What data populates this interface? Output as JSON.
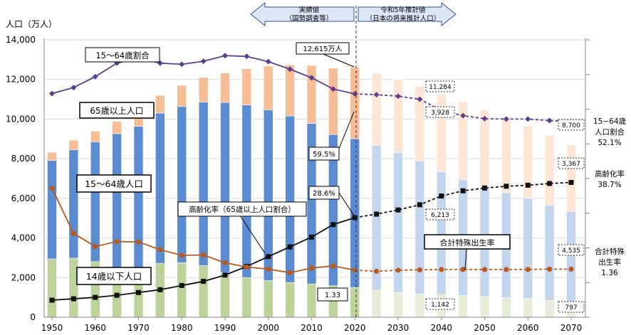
{
  "header": {
    "actual_label_1": "実績値",
    "actual_label_2": "（国勢調査等）",
    "proj_label_1": "令和5年推計値",
    "proj_label_2": "（日本の将来推計人口）"
  },
  "axes": {
    "left_title": "人口（万人）",
    "right_ticks": [
      "",
      "",
      "",
      "",
      "",
      "",
      "",
      "",
      ""
    ]
  },
  "labels": {
    "ratio_1564_box": "15～64歳割合",
    "pop_65_box": "65歳以上人口",
    "pop_1564_box": "15～64歳人口",
    "pop_014_box": "14歳以下人口",
    "aging_box": "高齢化率（65歳以上人口割合）",
    "tfr_box": "合計特殊出生率",
    "total_2020": "12,615万人",
    "ratio_2020": "59.5%",
    "aging_2020": "28.6%",
    "tfr_2020": "1.33",
    "v_11284": "11,284",
    "v_3928": "3,928",
    "v_6213": "6,213",
    "v_1142": "1,142",
    "v_8700": "8,700",
    "v_3367": "3,367",
    "v_4535": "4,535",
    "v_797": "797",
    "right_ratio_1": "15−64歳",
    "right_ratio_2": "人口割合",
    "right_ratio_3": "52.1%",
    "right_aging_1": "高齢化率",
    "right_aging_2": "38.7%",
    "right_tfr_1": "合計特殊",
    "right_tfr_2": "出生率",
    "right_tfr_3": "1.36"
  },
  "colors": {
    "pop014": "#bcd39a",
    "pop1564": "#5b8bd0",
    "pop65": "#f7be96",
    "pop014_proj": "#e6eed8",
    "pop1564_proj": "#c4d5ee",
    "pop65_proj": "#fde6d5",
    "ratio_line": "#5b3f8f",
    "aging_line": "#111111",
    "tfr_line": "#b9591b"
  },
  "chart_data": {
    "type": "bar",
    "stacked": true,
    "title": "",
    "ylabel": "人口（万人）",
    "ylim": [
      0,
      14000
    ],
    "yticks": [
      "0",
      "2,000",
      "4,000",
      "6,000",
      "8,000",
      "10,000",
      "12,000",
      "14,000"
    ],
    "xtick_labels": [
      "1950",
      "1960",
      "1970",
      "1980",
      "1990",
      "2000",
      "2010",
      "2020",
      "2030",
      "2040",
      "2050",
      "2060",
      "2070"
    ],
    "divider_year": 2020,
    "years": [
      1950,
      1955,
      1960,
      1965,
      1970,
      1975,
      1980,
      1985,
      1990,
      1995,
      2000,
      2005,
      2010,
      2015,
      2020,
      2025,
      2030,
      2035,
      2040,
      2045,
      2050,
      2055,
      2060,
      2065,
      2070
    ],
    "projected_from_index": 15,
    "series": [
      {
        "name": "14歳以下人口",
        "values": [
          2943,
          2980,
          2807,
          2517,
          2482,
          2722,
          2751,
          2603,
          2249,
          2001,
          1847,
          1752,
          1680,
          1589,
          1503,
          1363,
          1240,
          1169,
          1142,
          1103,
          1041,
          984,
          933,
          853,
          797
        ]
      },
      {
        "name": "15～64歳人口",
        "values": [
          4966,
          5473,
          6047,
          6744,
          7157,
          7581,
          7883,
          8251,
          8590,
          8716,
          8622,
          8409,
          8103,
          7629,
          7509,
          7310,
          7076,
          6722,
          6213,
          5832,
          5540,
          5302,
          5078,
          4809,
          4535
        ]
      },
      {
        "name": "65歳以上人口",
        "values": [
          416,
          479,
          540,
          624,
          739,
          887,
          1065,
          1247,
          1489,
          1826,
          2204,
          2576,
          2925,
          3347,
          3603,
          3653,
          3696,
          3773,
          3928,
          3945,
          3888,
          3807,
          3644,
          3512,
          3367
        ]
      }
    ],
    "line_series": [
      {
        "name": "15～64歳割合",
        "axis": "right",
        "x": [
          1950,
          1955,
          1960,
          1965,
          1970,
          1975,
          1980,
          1985,
          1990,
          1995,
          2000,
          2005,
          2010,
          2015,
          2020,
          2025,
          2030,
          2035,
          2040,
          2045,
          2050,
          2055,
          2060,
          2065,
          2070
        ],
        "values": [
          59.6,
          61.2,
          64.1,
          67.7,
          69.0,
          67.7,
          67.4,
          68.2,
          69.7,
          69.5,
          68.1,
          66.1,
          63.8,
          60.8,
          59.5,
          59.3,
          58.9,
          58.1,
          55.1,
          53.7,
          52.9,
          52.8,
          52.8,
          52.4,
          52.1
        ]
      },
      {
        "name": "高齢化率（65歳以上人口割合）",
        "axis": "right",
        "x": [
          1950,
          1955,
          1960,
          1965,
          1970,
          1975,
          1980,
          1985,
          1990,
          1995,
          2000,
          2005,
          2010,
          2015,
          2020,
          2025,
          2030,
          2035,
          2040,
          2045,
          2050,
          2055,
          2060,
          2065,
          2070
        ],
        "values": [
          4.9,
          5.3,
          5.7,
          6.3,
          7.1,
          7.9,
          9.1,
          10.3,
          12.1,
          14.6,
          17.4,
          20.2,
          23.0,
          26.6,
          28.6,
          29.6,
          30.8,
          32.3,
          34.8,
          36.3,
          37.1,
          37.6,
          37.9,
          38.4,
          38.7
        ]
      },
      {
        "name": "合計特殊出生率",
        "axis": "right",
        "x": [
          1950,
          1955,
          1960,
          1965,
          1970,
          1975,
          1980,
          1985,
          1990,
          1995,
          2000,
          2005,
          2010,
          2015,
          2020,
          2025,
          2030,
          2035,
          2040,
          2045,
          2050,
          2055,
          2060,
          2065,
          2070
        ],
        "values": [
          3.65,
          2.37,
          2.0,
          2.14,
          2.13,
          1.91,
          1.75,
          1.76,
          1.54,
          1.42,
          1.36,
          1.26,
          1.39,
          1.45,
          1.33,
          1.3,
          1.33,
          1.34,
          1.35,
          1.35,
          1.35,
          1.35,
          1.35,
          1.36,
          1.36
        ]
      }
    ]
  }
}
